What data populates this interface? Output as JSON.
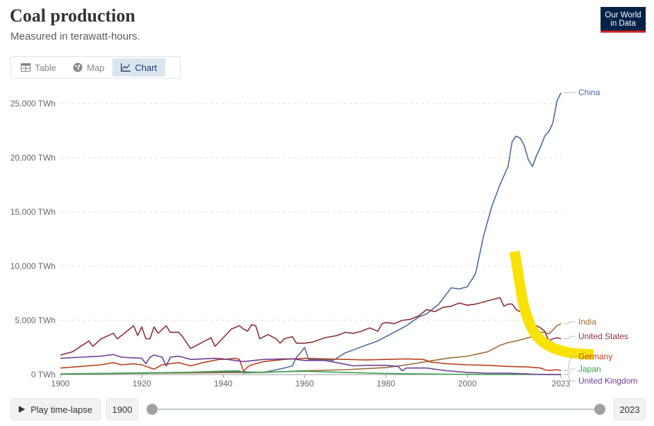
{
  "header": {
    "title": "Coal production",
    "subtitle": "Measured in terawatt-hours.",
    "logo_line1": "Our World",
    "logo_line2": "in Data"
  },
  "tabs": [
    {
      "label": "Table",
      "icon": "table-icon",
      "active": false
    },
    {
      "label": "Map",
      "icon": "globe-icon",
      "active": false
    },
    {
      "label": "Chart",
      "icon": "line-chart-icon",
      "active": true
    }
  ],
  "controls": {
    "play_label": "Play time-lapse",
    "start_year": "1900",
    "end_year": "2023",
    "slider_start": 1900,
    "slider_end": 2023
  },
  "colors": {
    "China": "#4c6a9c",
    "India": "#9a6a35",
    "United States": "#883039",
    "Germany": "#b8401e",
    "Japan": "#38a24f",
    "United Kingdom": "#6d3e91",
    "highlight": "#f9e200",
    "grid": "#dddddd",
    "axis_text": "#666666"
  },
  "chart_data": {
    "type": "line",
    "title": "Coal production",
    "subtitle": "Measured in terawatt-hours.",
    "xlabel": "",
    "ylabel": "",
    "xlim": [
      1900,
      2023
    ],
    "ylim": [
      0,
      26000
    ],
    "y_ticks": [
      0,
      5000,
      10000,
      15000,
      20000,
      25000
    ],
    "y_tick_labels": [
      "0 TWh",
      "5,000 TWh",
      "10,000 TWh",
      "15,000 TWh",
      "20,000 TWh",
      "25,000 TWh"
    ],
    "x_ticks": [
      1900,
      1920,
      1940,
      1960,
      1980,
      2000,
      2023
    ],
    "x_tick_labels": [
      "1900",
      "1920",
      "1940",
      "1960",
      "1980",
      "2000",
      "2023"
    ],
    "grid": "horizontal dashed",
    "legend": "end-of-line labels",
    "series": [
      {
        "name": "China",
        "points": [
          [
            1900,
            50
          ],
          [
            1920,
            150
          ],
          [
            1935,
            220
          ],
          [
            1945,
            250
          ],
          [
            1950,
            200
          ],
          [
            1955,
            600
          ],
          [
            1957,
            800
          ],
          [
            1958,
            1600
          ],
          [
            1959,
            2000
          ],
          [
            1960,
            2500
          ],
          [
            1961,
            1400
          ],
          [
            1965,
            1400
          ],
          [
            1967,
            1300
          ],
          [
            1970,
            2000
          ],
          [
            1975,
            2700
          ],
          [
            1978,
            3100
          ],
          [
            1980,
            3500
          ],
          [
            1985,
            4500
          ],
          [
            1988,
            5300
          ],
          [
            1990,
            5600
          ],
          [
            1993,
            6500
          ],
          [
            1996,
            8000
          ],
          [
            1998,
            7900
          ],
          [
            2000,
            8100
          ],
          [
            2002,
            9300
          ],
          [
            2004,
            12800
          ],
          [
            2006,
            15500
          ],
          [
            2008,
            17500
          ],
          [
            2010,
            19200
          ],
          [
            2011,
            21500
          ],
          [
            2012,
            22000
          ],
          [
            2013,
            21800
          ],
          [
            2014,
            21100
          ],
          [
            2015,
            19800
          ],
          [
            2016,
            19200
          ],
          [
            2017,
            20200
          ],
          [
            2018,
            21000
          ],
          [
            2019,
            22000
          ],
          [
            2020,
            22400
          ],
          [
            2021,
            23200
          ],
          [
            2022,
            25200
          ],
          [
            2023,
            26000
          ]
        ]
      },
      {
        "name": "India",
        "points": [
          [
            1900,
            40
          ],
          [
            1920,
            120
          ],
          [
            1940,
            180
          ],
          [
            1950,
            200
          ],
          [
            1960,
            350
          ],
          [
            1970,
            450
          ],
          [
            1980,
            650
          ],
          [
            1985,
            900
          ],
          [
            1990,
            1200
          ],
          [
            1995,
            1500
          ],
          [
            2000,
            1700
          ],
          [
            2005,
            2100
          ],
          [
            2008,
            2700
          ],
          [
            2010,
            2950
          ],
          [
            2012,
            3100
          ],
          [
            2014,
            3300
          ],
          [
            2016,
            3500
          ],
          [
            2018,
            3900
          ],
          [
            2019,
            3900
          ],
          [
            2020,
            3750
          ],
          [
            2021,
            4100
          ],
          [
            2022,
            4500
          ],
          [
            2023,
            4700
          ]
        ]
      },
      {
        "name": "United States",
        "points": [
          [
            1900,
            1800
          ],
          [
            1903,
            2100
          ],
          [
            1905,
            2600
          ],
          [
            1907,
            3100
          ],
          [
            1908,
            2600
          ],
          [
            1910,
            3300
          ],
          [
            1913,
            3800
          ],
          [
            1914,
            3300
          ],
          [
            1916,
            3900
          ],
          [
            1918,
            4500
          ],
          [
            1919,
            3600
          ],
          [
            1920,
            4400
          ],
          [
            1921,
            3300
          ],
          [
            1922,
            3300
          ],
          [
            1923,
            4400
          ],
          [
            1924,
            3800
          ],
          [
            1926,
            4500
          ],
          [
            1927,
            3900
          ],
          [
            1929,
            3900
          ],
          [
            1930,
            3500
          ],
          [
            1932,
            2400
          ],
          [
            1933,
            2600
          ],
          [
            1935,
            3000
          ],
          [
            1937,
            3400
          ],
          [
            1938,
            2600
          ],
          [
            1940,
            3400
          ],
          [
            1942,
            4200
          ],
          [
            1944,
            4500
          ],
          [
            1945,
            4200
          ],
          [
            1946,
            4000
          ],
          [
            1947,
            4600
          ],
          [
            1948,
            4500
          ],
          [
            1949,
            3300
          ],
          [
            1951,
            3700
          ],
          [
            1953,
            3300
          ],
          [
            1954,
            2900
          ],
          [
            1955,
            3300
          ],
          [
            1957,
            3500
          ],
          [
            1958,
            2900
          ],
          [
            1960,
            2900
          ],
          [
            1962,
            3000
          ],
          [
            1965,
            3400
          ],
          [
            1968,
            3600
          ],
          [
            1970,
            3900
          ],
          [
            1972,
            3800
          ],
          [
            1974,
            4000
          ],
          [
            1976,
            4300
          ],
          [
            1978,
            4000
          ],
          [
            1979,
            4700
          ],
          [
            1980,
            4800
          ],
          [
            1982,
            4700
          ],
          [
            1984,
            5000
          ],
          [
            1986,
            5100
          ],
          [
            1988,
            5400
          ],
          [
            1990,
            6000
          ],
          [
            1992,
            5800
          ],
          [
            1994,
            6200
          ],
          [
            1996,
            6300
          ],
          [
            1998,
            6600
          ],
          [
            2000,
            6400
          ],
          [
            2002,
            6500
          ],
          [
            2004,
            6700
          ],
          [
            2006,
            6900
          ],
          [
            2008,
            7100
          ],
          [
            2009,
            6300
          ],
          [
            2010,
            6500
          ],
          [
            2011,
            6500
          ],
          [
            2012,
            6000
          ],
          [
            2013,
            5800
          ],
          [
            2014,
            5900
          ],
          [
            2015,
            5200
          ],
          [
            2016,
            4300
          ],
          [
            2017,
            4500
          ],
          [
            2018,
            4300
          ],
          [
            2019,
            4000
          ],
          [
            2020,
            3100
          ],
          [
            2021,
            3300
          ],
          [
            2022,
            3400
          ],
          [
            2023,
            3300
          ]
        ]
      },
      {
        "name": "Germany",
        "points": [
          [
            1900,
            600
          ],
          [
            1905,
            750
          ],
          [
            1910,
            900
          ],
          [
            1913,
            1100
          ],
          [
            1915,
            900
          ],
          [
            1918,
            1000
          ],
          [
            1920,
            900
          ],
          [
            1923,
            500
          ],
          [
            1925,
            900
          ],
          [
            1929,
            1100
          ],
          [
            1932,
            800
          ],
          [
            1935,
            1100
          ],
          [
            1939,
            1400
          ],
          [
            1940,
            1400
          ],
          [
            1943,
            1500
          ],
          [
            1944,
            1400
          ],
          [
            1945,
            300
          ],
          [
            1946,
            700
          ],
          [
            1947,
            900
          ],
          [
            1950,
            1200
          ],
          [
            1955,
            1400
          ],
          [
            1960,
            1500
          ],
          [
            1965,
            1450
          ],
          [
            1970,
            1400
          ],
          [
            1975,
            1350
          ],
          [
            1980,
            1400
          ],
          [
            1985,
            1450
          ],
          [
            1989,
            1400
          ],
          [
            1990,
            1300
          ],
          [
            1991,
            1150
          ],
          [
            1995,
            1000
          ],
          [
            2000,
            900
          ],
          [
            2005,
            850
          ],
          [
            2010,
            750
          ],
          [
            2015,
            700
          ],
          [
            2018,
            600
          ],
          [
            2019,
            450
          ],
          [
            2020,
            380
          ],
          [
            2021,
            420
          ],
          [
            2022,
            440
          ],
          [
            2023,
            380
          ]
        ]
      },
      {
        "name": "Japan",
        "points": [
          [
            1900,
            50
          ],
          [
            1910,
            100
          ],
          [
            1920,
            150
          ],
          [
            1930,
            200
          ],
          [
            1940,
            320
          ],
          [
            1944,
            350
          ],
          [
            1945,
            150
          ],
          [
            1950,
            230
          ],
          [
            1960,
            300
          ],
          [
            1970,
            200
          ],
          [
            1980,
            100
          ],
          [
            1990,
            50
          ],
          [
            2000,
            20
          ],
          [
            2010,
            10
          ],
          [
            2023,
            5
          ]
        ]
      },
      {
        "name": "United Kingdom",
        "points": [
          [
            1900,
            1500
          ],
          [
            1905,
            1600
          ],
          [
            1910,
            1700
          ],
          [
            1913,
            1850
          ],
          [
            1915,
            1600
          ],
          [
            1920,
            1500
          ],
          [
            1921,
            1000
          ],
          [
            1922,
            1600
          ],
          [
            1923,
            1800
          ],
          [
            1925,
            1600
          ],
          [
            1926,
            800
          ],
          [
            1927,
            1600
          ],
          [
            1929,
            1700
          ],
          [
            1930,
            1600
          ],
          [
            1932,
            1400
          ],
          [
            1935,
            1450
          ],
          [
            1938,
            1500
          ],
          [
            1940,
            1450
          ],
          [
            1945,
            1200
          ],
          [
            1950,
            1400
          ],
          [
            1955,
            1450
          ],
          [
            1957,
            1450
          ],
          [
            1960,
            1300
          ],
          [
            1965,
            1300
          ],
          [
            1970,
            950
          ],
          [
            1972,
            800
          ],
          [
            1975,
            850
          ],
          [
            1980,
            850
          ],
          [
            1983,
            750
          ],
          [
            1984,
            350
          ],
          [
            1985,
            600
          ],
          [
            1990,
            600
          ],
          [
            1993,
            450
          ],
          [
            1995,
            350
          ],
          [
            2000,
            200
          ],
          [
            2005,
            130
          ],
          [
            2010,
            120
          ],
          [
            2015,
            60
          ],
          [
            2016,
            25
          ],
          [
            2020,
            10
          ],
          [
            2023,
            5
          ]
        ]
      }
    ],
    "end_labels": [
      "China",
      "India",
      "United States",
      "Germany",
      "Japan",
      "United Kingdom"
    ]
  }
}
